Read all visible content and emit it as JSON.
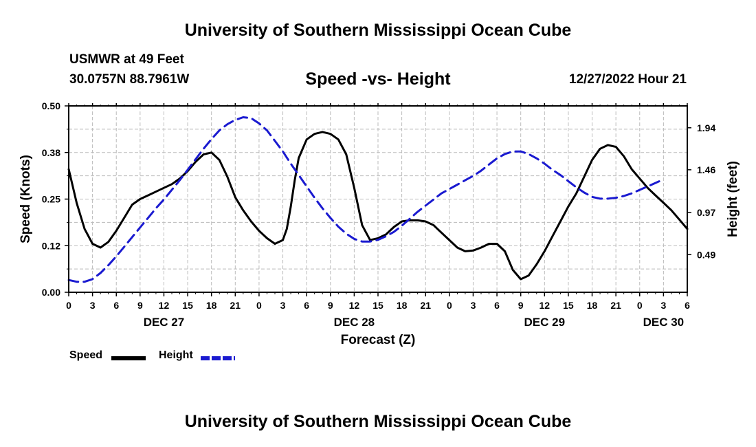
{
  "header": {
    "title": "University of Southern Mississippi Ocean Cube",
    "station": "USMWR at 49 Feet",
    "coords": "30.0757N  88.7961W",
    "subtitle": "Speed -vs- Height",
    "datetime": "12/27/2022 Hour 21"
  },
  "footer": {
    "title": "University of Southern Mississippi Ocean Cube"
  },
  "legend": {
    "speed_label": "Speed",
    "height_label": "Height"
  },
  "colors": {
    "speed": "#000000",
    "height": "#1a1ad0",
    "grid": "#bbbbbb"
  },
  "chart_data": {
    "type": "line",
    "title": "Speed -vs- Height",
    "xlabel": "Forecast (Z)",
    "ylabel": "Speed (Knots)",
    "y2label": "Height (feet)",
    "x_unit": "hours",
    "xlim": [
      0,
      78
    ],
    "x_ticks": [
      0,
      3,
      6,
      9,
      12,
      15,
      18,
      21,
      24,
      27,
      30,
      33,
      36,
      39,
      42,
      45,
      48,
      51,
      54,
      57,
      60,
      63,
      66,
      69,
      72,
      75,
      78
    ],
    "x_tick_labels": [
      "0",
      "3",
      "6",
      "9",
      "12",
      "15",
      "18",
      "21",
      "0",
      "3",
      "6",
      "9",
      "12",
      "15",
      "18",
      "21",
      "0",
      "3",
      "6",
      "9",
      "12",
      "15",
      "18",
      "21",
      "0",
      "3",
      "6"
    ],
    "day_labels": [
      {
        "x": 12,
        "label": "DEC 27"
      },
      {
        "x": 36,
        "label": "DEC 28"
      },
      {
        "x": 60,
        "label": "DEC 29"
      },
      {
        "x": 75,
        "label": "DEC 30"
      }
    ],
    "ylim": [
      0,
      0.5
    ],
    "y_ticks": [
      0,
      0.125,
      0.25,
      0.375,
      0.5
    ],
    "y_tick_labels": [
      "0.00",
      "0.12",
      "0.25",
      "0.38",
      "0.50"
    ],
    "y2lim": [
      0.06,
      2.19
    ],
    "y2_ticks": [
      0.49,
      0.97,
      1.46,
      1.94
    ],
    "y2_tick_labels": [
      "0.49",
      "0.97",
      "1.46",
      "1.94"
    ],
    "grid": true,
    "series": [
      {
        "name": "Speed",
        "axis": "left",
        "style": "solid",
        "points": [
          [
            0,
            0.33
          ],
          [
            1,
            0.24
          ],
          [
            2,
            0.17
          ],
          [
            3,
            0.13
          ],
          [
            4,
            0.12
          ],
          [
            5,
            0.135
          ],
          [
            6,
            0.165
          ],
          [
            7,
            0.2
          ],
          [
            8,
            0.235
          ],
          [
            9,
            0.25
          ],
          [
            10,
            0.26
          ],
          [
            11,
            0.27
          ],
          [
            12,
            0.28
          ],
          [
            13,
            0.29
          ],
          [
            14,
            0.305
          ],
          [
            15,
            0.325
          ],
          [
            16,
            0.35
          ],
          [
            17,
            0.37
          ],
          [
            18,
            0.375
          ],
          [
            19,
            0.355
          ],
          [
            20,
            0.31
          ],
          [
            21,
            0.255
          ],
          [
            22,
            0.22
          ],
          [
            23,
            0.19
          ],
          [
            24,
            0.165
          ],
          [
            25,
            0.145
          ],
          [
            26,
            0.13
          ],
          [
            27,
            0.14
          ],
          [
            27.5,
            0.17
          ],
          [
            28,
            0.23
          ],
          [
            28.5,
            0.3
          ],
          [
            29,
            0.36
          ],
          [
            30,
            0.41
          ],
          [
            31,
            0.425
          ],
          [
            32,
            0.43
          ],
          [
            33,
            0.425
          ],
          [
            34,
            0.41
          ],
          [
            35,
            0.37
          ],
          [
            36,
            0.28
          ],
          [
            37,
            0.18
          ],
          [
            38,
            0.14
          ],
          [
            39,
            0.145
          ],
          [
            40,
            0.155
          ],
          [
            41,
            0.175
          ],
          [
            42,
            0.19
          ],
          [
            43,
            0.193
          ],
          [
            44,
            0.193
          ],
          [
            45,
            0.19
          ],
          [
            46,
            0.18
          ],
          [
            47,
            0.16
          ],
          [
            48,
            0.14
          ],
          [
            49,
            0.12
          ],
          [
            50,
            0.11
          ],
          [
            51,
            0.112
          ],
          [
            52,
            0.12
          ],
          [
            53,
            0.13
          ],
          [
            54,
            0.13
          ],
          [
            55,
            0.11
          ],
          [
            56,
            0.06
          ],
          [
            57,
            0.035
          ],
          [
            58,
            0.045
          ],
          [
            59,
            0.075
          ],
          [
            60,
            0.11
          ],
          [
            61,
            0.15
          ],
          [
            62,
            0.19
          ],
          [
            63,
            0.23
          ],
          [
            64,
            0.265
          ],
          [
            65,
            0.31
          ],
          [
            66,
            0.355
          ],
          [
            67,
            0.385
          ],
          [
            68,
            0.395
          ],
          [
            69,
            0.39
          ],
          [
            70,
            0.365
          ],
          [
            71,
            0.33
          ],
          [
            72,
            0.305
          ],
          [
            73,
            0.28
          ],
          [
            74,
            0.26
          ],
          [
            75,
            0.24
          ],
          [
            76,
            0.22
          ],
          [
            77,
            0.195
          ],
          [
            78,
            0.17
          ]
        ]
      },
      {
        "name": "Height",
        "axis": "right",
        "style": "dashed",
        "points": [
          [
            0,
            0.2
          ],
          [
            1,
            0.18
          ],
          [
            2,
            0.18
          ],
          [
            3,
            0.21
          ],
          [
            4,
            0.28
          ],
          [
            5,
            0.37
          ],
          [
            6,
            0.47
          ],
          [
            7,
            0.58
          ],
          [
            8,
            0.69
          ],
          [
            9,
            0.8
          ],
          [
            10,
            0.91
          ],
          [
            11,
            1.02
          ],
          [
            12,
            1.12
          ],
          [
            13,
            1.23
          ],
          [
            14,
            1.34
          ],
          [
            15,
            1.46
          ],
          [
            16,
            1.58
          ],
          [
            17,
            1.7
          ],
          [
            18,
            1.81
          ],
          [
            19,
            1.91
          ],
          [
            20,
            1.98
          ],
          [
            21,
            2.03
          ],
          [
            22,
            2.06
          ],
          [
            23,
            2.05
          ],
          [
            24,
            1.99
          ],
          [
            25,
            1.91
          ],
          [
            26,
            1.79
          ],
          [
            27,
            1.67
          ],
          [
            28,
            1.53
          ],
          [
            29,
            1.4
          ],
          [
            30,
            1.27
          ],
          [
            31,
            1.14
          ],
          [
            32,
            1.02
          ],
          [
            33,
            0.91
          ],
          [
            34,
            0.81
          ],
          [
            35,
            0.73
          ],
          [
            36,
            0.67
          ],
          [
            37,
            0.64
          ],
          [
            38,
            0.64
          ],
          [
            39,
            0.66
          ],
          [
            40,
            0.7
          ],
          [
            41,
            0.75
          ],
          [
            42,
            0.82
          ],
          [
            43,
            0.9
          ],
          [
            44,
            0.98
          ],
          [
            45,
            1.05
          ],
          [
            46,
            1.12
          ],
          [
            47,
            1.19
          ],
          [
            48,
            1.24
          ],
          [
            49,
            1.29
          ],
          [
            50,
            1.34
          ],
          [
            51,
            1.39
          ],
          [
            52,
            1.45
          ],
          [
            53,
            1.52
          ],
          [
            54,
            1.59
          ],
          [
            55,
            1.64
          ],
          [
            56,
            1.67
          ],
          [
            57,
            1.67
          ],
          [
            58,
            1.64
          ],
          [
            59,
            1.59
          ],
          [
            60,
            1.53
          ],
          [
            61,
            1.46
          ],
          [
            62,
            1.4
          ],
          [
            63,
            1.33
          ],
          [
            64,
            1.26
          ],
          [
            65,
            1.2
          ],
          [
            66,
            1.15
          ],
          [
            67,
            1.13
          ],
          [
            68,
            1.13
          ],
          [
            69,
            1.14
          ],
          [
            70,
            1.16
          ],
          [
            71,
            1.19
          ],
          [
            72,
            1.23
          ],
          [
            73,
            1.27
          ],
          [
            74,
            1.31
          ],
          [
            75,
            1.35
          ]
        ]
      }
    ]
  }
}
